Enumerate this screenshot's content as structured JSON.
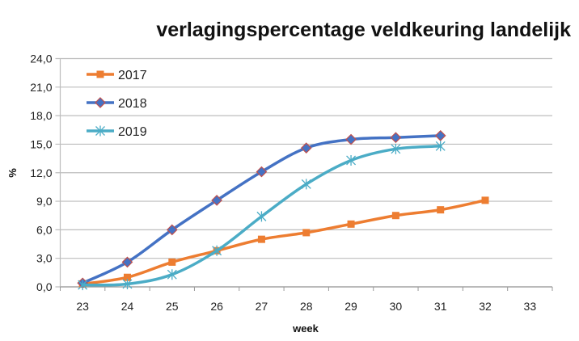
{
  "chart_data": {
    "type": "line",
    "title": "verlagingspercentage veldkeuring landelijk",
    "xlabel": "week",
    "ylabel": "%",
    "categories": [
      "23",
      "24",
      "25",
      "26",
      "27",
      "28",
      "29",
      "30",
      "31",
      "32",
      "33"
    ],
    "ylim": [
      0,
      24
    ],
    "yticks": [
      "0,0",
      "3,0",
      "6,0",
      "9,0",
      "12,0",
      "15,0",
      "18,0",
      "21,0",
      "24,0"
    ],
    "ytick_values": [
      0,
      3,
      6,
      9,
      12,
      15,
      18,
      21,
      24
    ],
    "grid": true,
    "legend_position": "top-left",
    "series": [
      {
        "name": "2017",
        "color": "#ED7D31",
        "marker": "square",
        "values": [
          0.3,
          1.0,
          2.6,
          3.8,
          5.0,
          5.7,
          6.6,
          7.5,
          8.1,
          9.1,
          null
        ]
      },
      {
        "name": "2018",
        "color": "#4472C4",
        "marker": "diamond",
        "marker_edge": "#C0504D",
        "values": [
          0.4,
          2.6,
          6.0,
          9.1,
          12.1,
          14.6,
          15.5,
          15.7,
          15.9,
          null,
          null
        ]
      },
      {
        "name": "2019",
        "color": "#4BACC6",
        "marker": "star",
        "values": [
          0.2,
          0.3,
          1.3,
          3.8,
          7.4,
          10.8,
          13.3,
          14.5,
          14.8,
          null,
          null
        ]
      }
    ]
  }
}
